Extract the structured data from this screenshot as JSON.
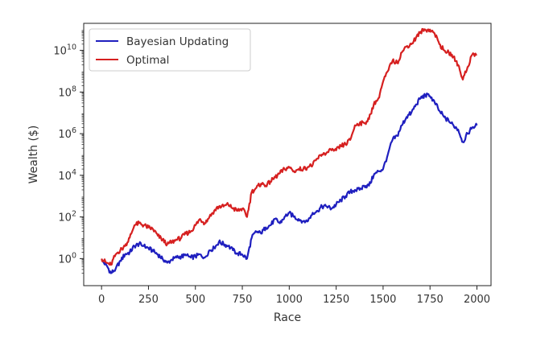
{
  "chart_data": {
    "type": "line",
    "title": "",
    "xlabel": "Race",
    "ylabel": "Wealth ($)",
    "xlim": [
      -95,
      2075
    ],
    "ylim_log10": [
      -1.3,
      11.3
    ],
    "y_scale": "log",
    "grid": false,
    "legend_position": "top-left",
    "x_ticks": [
      0,
      250,
      500,
      750,
      1000,
      1250,
      1500,
      1750,
      2000
    ],
    "x_tick_labels": [
      "0",
      "250",
      "500",
      "750",
      "1000",
      "1250",
      "1500",
      "1750",
      "2000"
    ],
    "y_ticks_log10": [
      0,
      2,
      4,
      6,
      8,
      10
    ],
    "y_tick_labels": [
      {
        "base": "10",
        "exp": "0"
      },
      {
        "base": "10",
        "exp": "2"
      },
      {
        "base": "10",
        "exp": "4"
      },
      {
        "base": "10",
        "exp": "6"
      },
      {
        "base": "10",
        "exp": "8"
      },
      {
        "base": "10",
        "exp": "10"
      }
    ],
    "series": [
      {
        "name": "Bayesian Updating",
        "color": "#1f1fbf",
        "x": [
          0,
          25,
          50,
          75,
          100,
          125,
          150,
          175,
          200,
          225,
          250,
          275,
          300,
          325,
          350,
          375,
          400,
          425,
          450,
          475,
          500,
          525,
          550,
          575,
          600,
          625,
          650,
          675,
          700,
          725,
          750,
          775,
          800,
          825,
          850,
          875,
          900,
          925,
          950,
          975,
          1000,
          1025,
          1050,
          1075,
          1100,
          1125,
          1150,
          1175,
          1200,
          1225,
          1250,
          1275,
          1300,
          1325,
          1350,
          1375,
          1400,
          1425,
          1450,
          1475,
          1500,
          1525,
          1550,
          1575,
          1600,
          1625,
          1650,
          1675,
          1700,
          1725,
          1750,
          1775,
          1800,
          1825,
          1850,
          1875,
          1900,
          1925,
          1950,
          1975,
          2000
        ],
        "log10_y": [
          -0.1,
          -0.3,
          -0.7,
          -0.5,
          -0.1,
          0.2,
          0.3,
          0.6,
          0.7,
          0.6,
          0.5,
          0.35,
          0.2,
          0.0,
          -0.2,
          -0.05,
          0.05,
          0.1,
          0.15,
          0.05,
          0.1,
          0.2,
          0.05,
          0.4,
          0.5,
          0.8,
          0.7,
          0.6,
          0.4,
          0.25,
          0.2,
          0.0,
          1.0,
          1.3,
          1.2,
          1.5,
          1.6,
          1.9,
          1.7,
          2.0,
          2.2,
          2.0,
          1.9,
          1.8,
          1.8,
          2.2,
          2.3,
          2.5,
          2.5,
          2.4,
          2.6,
          2.8,
          3.0,
          3.2,
          3.3,
          3.3,
          3.5,
          3.5,
          4.0,
          4.2,
          4.3,
          5.0,
          5.7,
          5.9,
          6.4,
          6.8,
          7.0,
          7.4,
          7.7,
          7.85,
          7.8,
          7.5,
          7.1,
          6.8,
          6.6,
          6.4,
          6.2,
          5.6,
          6.0,
          6.3,
          6.4
        ]
      },
      {
        "name": "Optimal",
        "color": "#d62020",
        "x": [
          0,
          25,
          50,
          75,
          100,
          125,
          150,
          175,
          200,
          225,
          250,
          275,
          300,
          325,
          350,
          375,
          400,
          425,
          450,
          475,
          500,
          525,
          550,
          575,
          600,
          625,
          650,
          675,
          700,
          725,
          750,
          775,
          800,
          825,
          850,
          875,
          900,
          925,
          950,
          975,
          1000,
          1025,
          1050,
          1075,
          1100,
          1125,
          1150,
          1175,
          1200,
          1225,
          1250,
          1275,
          1300,
          1325,
          1350,
          1375,
          1400,
          1425,
          1450,
          1475,
          1500,
          1525,
          1550,
          1575,
          1600,
          1625,
          1650,
          1675,
          1700,
          1725,
          1750,
          1775,
          1800,
          1825,
          1850,
          1875,
          1900,
          1925,
          1950,
          1975,
          2000
        ],
        "log10_y": [
          0.0,
          -0.2,
          -0.3,
          0.2,
          0.4,
          0.6,
          1.0,
          1.6,
          1.7,
          1.6,
          1.5,
          1.4,
          1.1,
          0.9,
          0.7,
          0.8,
          0.9,
          1.0,
          1.2,
          1.3,
          1.6,
          1.9,
          1.7,
          2.0,
          2.3,
          2.5,
          2.5,
          2.6,
          2.4,
          2.3,
          2.4,
          2.0,
          3.2,
          3.4,
          3.6,
          3.5,
          3.7,
          3.9,
          4.1,
          4.3,
          4.4,
          4.2,
          4.3,
          4.3,
          4.4,
          4.5,
          4.8,
          5.0,
          5.1,
          5.2,
          5.2,
          5.4,
          5.5,
          5.7,
          6.4,
          6.5,
          6.5,
          6.7,
          7.4,
          7.7,
          8.5,
          9.0,
          9.5,
          9.4,
          9.9,
          10.2,
          10.3,
          10.6,
          10.9,
          11.0,
          11.0,
          10.8,
          10.3,
          10.0,
          9.9,
          9.7,
          9.3,
          8.6,
          9.2,
          9.8,
          9.8
        ]
      }
    ]
  }
}
